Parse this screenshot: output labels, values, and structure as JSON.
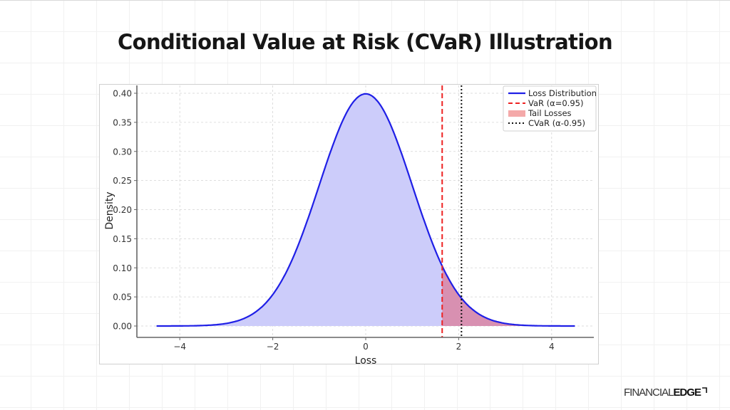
{
  "header": {
    "title": "Conditional Value at Risk (CVaR) Illustration"
  },
  "branding": {
    "logo_light": "FINANCIAL",
    "logo_bold": "EDGE"
  },
  "colors": {
    "distribution_line": "#1f1fe6",
    "distribution_fill": "#ccccfa",
    "tail_fill": "#d98aa8",
    "var_line": "#ee2222",
    "cvar_line": "#111111",
    "legend_tail_swatch": "#f4a9a9"
  },
  "chart_data": {
    "type": "area",
    "title": "",
    "xlabel": "Loss",
    "ylabel": "Density",
    "xlim": [
      -4.75,
      5.0
    ],
    "ylim": [
      -0.02,
      0.41
    ],
    "grid": true,
    "legend_position": "upper right",
    "x_ticks": [
      -4,
      -2,
      0,
      2,
      4
    ],
    "x_tick_labels": [
      "−4",
      "−2",
      "0",
      "2",
      "4"
    ],
    "y_ticks": [
      0.0,
      0.05,
      0.1,
      0.15,
      0.2,
      0.25,
      0.3,
      0.35,
      0.4
    ],
    "y_tick_labels": [
      "0.00",
      "0.05",
      "0.10",
      "0.15",
      "0.20",
      "0.25",
      "0.30",
      "0.35",
      "0.40"
    ],
    "series": [
      {
        "name": "Loss Distribution",
        "style": "solid line with filled area",
        "x": [
          -4.5,
          -4.0,
          -3.5,
          -3.0,
          -2.75,
          -2.5,
          -2.25,
          -2.0,
          -1.75,
          -1.5,
          -1.25,
          -1.0,
          -0.75,
          -0.5,
          -0.25,
          0.0,
          0.1,
          0.25,
          0.5,
          0.75,
          1.0,
          1.25,
          1.5,
          1.645,
          1.75,
          2.0,
          2.06,
          2.25,
          2.5,
          2.75,
          3.0,
          3.5,
          4.0,
          4.5
        ],
        "y": [
          0.0,
          0.0001,
          0.0009,
          0.0044,
          0.009,
          0.0175,
          0.0317,
          0.054,
          0.0863,
          0.1295,
          0.1826,
          0.242,
          0.3011,
          0.3521,
          0.3867,
          0.3989,
          0.397,
          0.3867,
          0.3521,
          0.3011,
          0.242,
          0.1826,
          0.1295,
          0.1031,
          0.0863,
          0.054,
          0.0478,
          0.0317,
          0.0175,
          0.009,
          0.0044,
          0.0009,
          0.0001,
          0.0
        ]
      },
      {
        "name": "Tail Losses",
        "style": "filled region for x >= VaR",
        "x_start": 1.645,
        "x_end": 4.5
      }
    ],
    "reference_lines": [
      {
        "name": "VaR (α=0.95)",
        "x": 1.645,
        "style": "dashed",
        "color": "#ee2222"
      },
      {
        "name": "CVaR (α-0.95)",
        "x": 2.06,
        "style": "dotted",
        "color": "#111111"
      }
    ],
    "legend": [
      {
        "label": "Loss Distribution",
        "kind": "line-solid"
      },
      {
        "label": "VaR (α=0.95)",
        "kind": "line-dashed"
      },
      {
        "label": "Tail Losses",
        "kind": "patch"
      },
      {
        "label": "CVaR (α-0.95)",
        "kind": "line-dotted"
      }
    ]
  }
}
